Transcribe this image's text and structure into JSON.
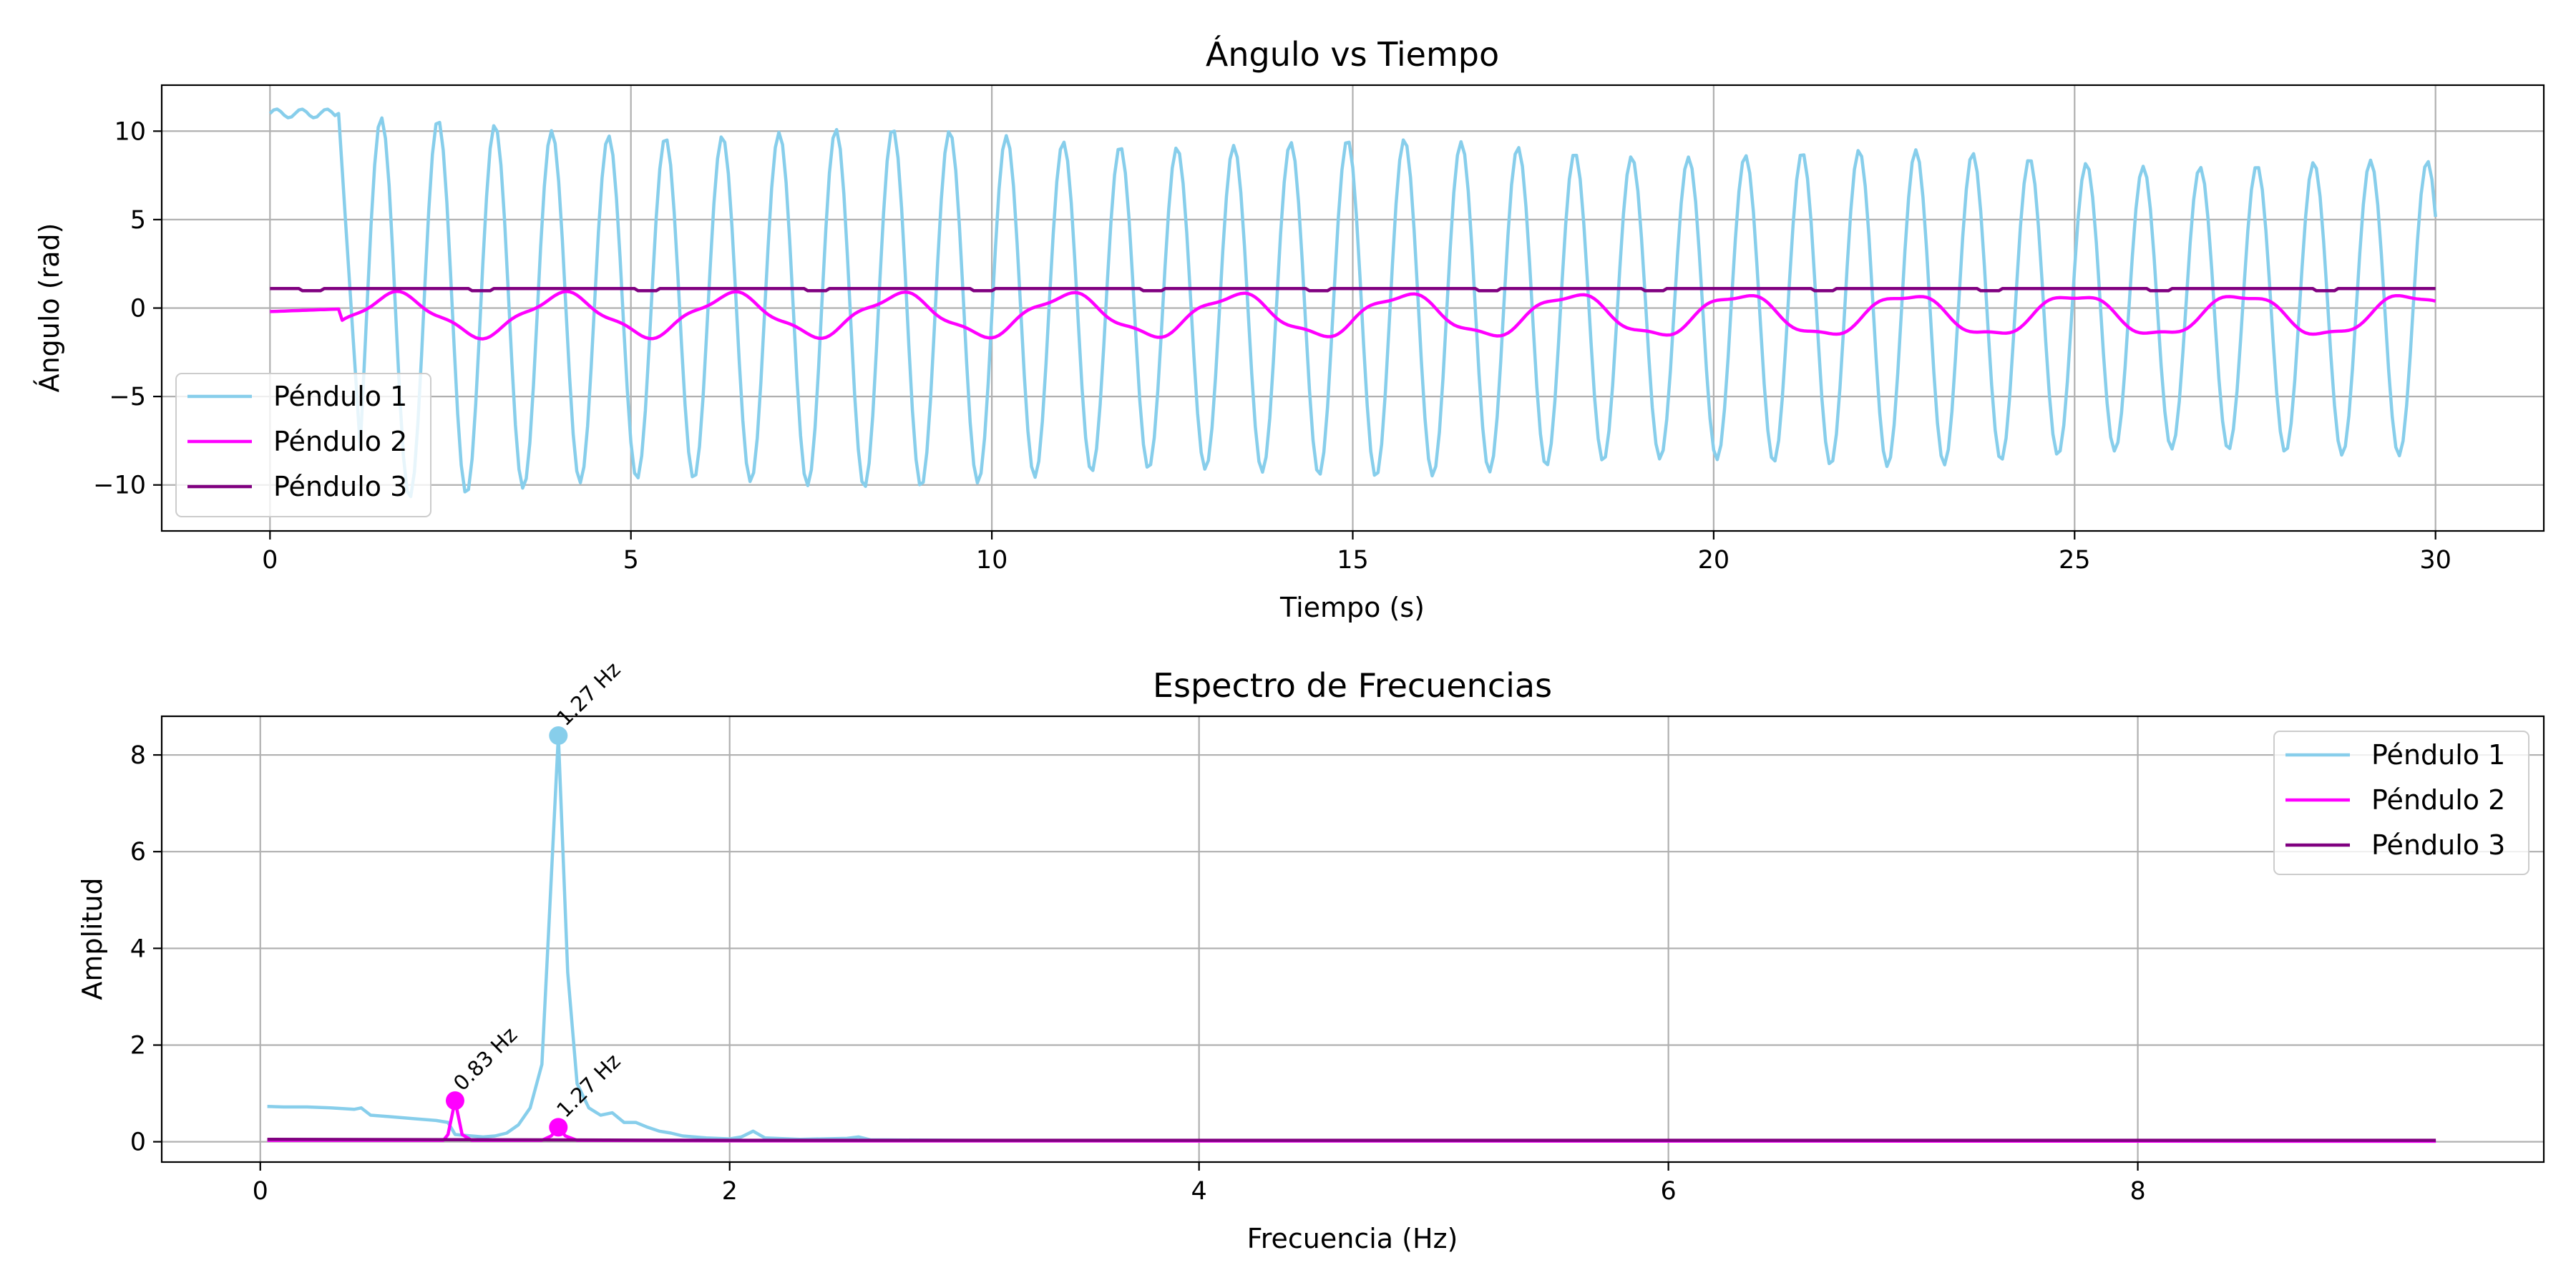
{
  "chart_data": [
    {
      "type": "line",
      "title": "Ángulo vs Tiempo",
      "xlabel": "Tiempo (s)",
      "ylabel": "Ángulo (rad)",
      "xlim": [
        -1.5,
        31.5
      ],
      "ylim": [
        -12.6,
        12.6
      ],
      "xticks": [
        0,
        5,
        10,
        15,
        20,
        25,
        30
      ],
      "yticks": [
        -10,
        -5,
        0,
        5,
        10
      ],
      "ytick_labels": [
        "−10",
        "−5",
        "0",
        "5",
        "10"
      ],
      "grid": true,
      "legend_position": "lower-left",
      "series": [
        {
          "name": "Péndulo 1",
          "color": "#87ceeb",
          "amplitude_start": 10.5,
          "amplitude_end": 8.0,
          "frequency_hz": 1.27,
          "initial_value": 11.0,
          "initial_hold_s": 0.95
        },
        {
          "name": "Péndulo 2",
          "color": "#ff00ff",
          "offset": -0.4,
          "amplitude": 1.15,
          "frequency_hz": 0.43,
          "beat_amplitude": 0.2,
          "beat_frequency_hz": 1.27
        },
        {
          "name": "Péndulo 3",
          "color": "#800080",
          "value": 1.1,
          "ripple": 0.12,
          "ripple_frequency_hz": 0.43
        }
      ]
    },
    {
      "type": "line",
      "title": "Espectro de Frecuencias",
      "xlabel": "Frecuencia (Hz)",
      "ylabel": "Amplitud",
      "xlim": [
        -0.42,
        9.73
      ],
      "ylim": [
        -0.42,
        8.8
      ],
      "xticks": [
        0,
        2,
        4,
        6,
        8
      ],
      "yticks": [
        0,
        2,
        4,
        6,
        8
      ],
      "grid": true,
      "legend_position": "upper-right",
      "series": [
        {
          "name": "Péndulo 1",
          "color": "#87ceeb",
          "points": [
            [
              0.03,
              0.73
            ],
            [
              0.1,
              0.72
            ],
            [
              0.2,
              0.72
            ],
            [
              0.3,
              0.7
            ],
            [
              0.4,
              0.67
            ],
            [
              0.43,
              0.7
            ],
            [
              0.47,
              0.55
            ],
            [
              0.55,
              0.52
            ],
            [
              0.65,
              0.48
            ],
            [
              0.75,
              0.44
            ],
            [
              0.8,
              0.4
            ],
            [
              0.83,
              0.15
            ],
            [
              0.9,
              0.12
            ],
            [
              0.95,
              0.1
            ],
            [
              1.0,
              0.12
            ],
            [
              1.05,
              0.18
            ],
            [
              1.1,
              0.35
            ],
            [
              1.15,
              0.7
            ],
            [
              1.2,
              1.6
            ],
            [
              1.23,
              4.5
            ],
            [
              1.27,
              8.4
            ],
            [
              1.31,
              3.5
            ],
            [
              1.35,
              1.2
            ],
            [
              1.4,
              0.7
            ],
            [
              1.45,
              0.55
            ],
            [
              1.5,
              0.6
            ],
            [
              1.55,
              0.4
            ],
            [
              1.6,
              0.4
            ],
            [
              1.65,
              0.3
            ],
            [
              1.7,
              0.22
            ],
            [
              1.75,
              0.18
            ],
            [
              1.8,
              0.12
            ],
            [
              1.9,
              0.08
            ],
            [
              2.0,
              0.06
            ],
            [
              2.05,
              0.1
            ],
            [
              2.1,
              0.22
            ],
            [
              2.15,
              0.08
            ],
            [
              2.3,
              0.05
            ],
            [
              2.5,
              0.07
            ],
            [
              2.55,
              0.1
            ],
            [
              2.6,
              0.04
            ],
            [
              3.0,
              0.03
            ],
            [
              4.0,
              0.02
            ],
            [
              6.0,
              0.015
            ],
            [
              8.0,
              0.012
            ],
            [
              9.27,
              0.01
            ]
          ]
        },
        {
          "name": "Péndulo 2",
          "color": "#ff00ff",
          "points": [
            [
              0.03,
              0.03
            ],
            [
              0.5,
              0.03
            ],
            [
              0.78,
              0.03
            ],
            [
              0.8,
              0.15
            ],
            [
              0.83,
              0.85
            ],
            [
              0.86,
              0.15
            ],
            [
              0.9,
              0.03
            ],
            [
              1.2,
              0.03
            ],
            [
              1.24,
              0.12
            ],
            [
              1.27,
              0.3
            ],
            [
              1.3,
              0.12
            ],
            [
              1.35,
              0.03
            ],
            [
              2.0,
              0.02
            ],
            [
              9.27,
              0.01
            ]
          ]
        },
        {
          "name": "Péndulo 3",
          "color": "#800080",
          "points": [
            [
              0.03,
              0.05
            ],
            [
              1.0,
              0.04
            ],
            [
              2.0,
              0.03
            ],
            [
              4.0,
              0.03
            ],
            [
              9.27,
              0.03
            ]
          ]
        }
      ],
      "peaks": [
        {
          "series": "Péndulo 1",
          "x": 1.27,
          "y": 8.4,
          "label": "1.27 Hz"
        },
        {
          "series": "Péndulo 2",
          "x": 0.83,
          "y": 0.85,
          "label": "0.83 Hz"
        },
        {
          "series": "Péndulo 2",
          "x": 1.27,
          "y": 0.3,
          "label": "1.27 Hz"
        }
      ]
    }
  ]
}
